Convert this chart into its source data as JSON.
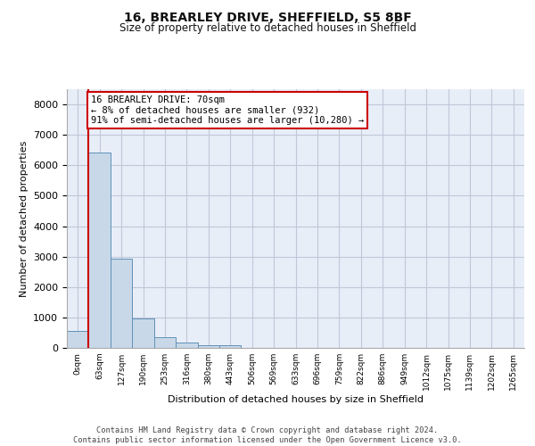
{
  "title_line1": "16, BREARLEY DRIVE, SHEFFIELD, S5 8BF",
  "title_line2": "Size of property relative to detached houses in Sheffield",
  "xlabel": "Distribution of detached houses by size in Sheffield",
  "ylabel": "Number of detached properties",
  "bin_labels": [
    "0sqm",
    "63sqm",
    "127sqm",
    "190sqm",
    "253sqm",
    "316sqm",
    "380sqm",
    "443sqm",
    "506sqm",
    "569sqm",
    "633sqm",
    "696sqm",
    "759sqm",
    "822sqm",
    "886sqm",
    "949sqm",
    "1012sqm",
    "1075sqm",
    "1139sqm",
    "1202sqm",
    "1265sqm"
  ],
  "bar_values": [
    560,
    6420,
    2920,
    980,
    360,
    170,
    100,
    75,
    0,
    0,
    0,
    0,
    0,
    0,
    0,
    0,
    0,
    0,
    0,
    0
  ],
  "bar_color": "#c8d8e8",
  "bar_edge_color": "#6090b8",
  "property_line_color": "#cc0000",
  "annotation_text": "16 BREARLEY DRIVE: 70sqm\n← 8% of detached houses are smaller (932)\n91% of semi-detached houses are larger (10,280) →",
  "annotation_box_color": "#ffffff",
  "annotation_box_edge": "#cc0000",
  "ylim": [
    0,
    8500
  ],
  "yticks": [
    0,
    1000,
    2000,
    3000,
    4000,
    5000,
    6000,
    7000,
    8000
  ],
  "grid_color": "#c0c8d8",
  "background_color": "#e8eef8",
  "footer_text": "Contains HM Land Registry data © Crown copyright and database right 2024.\nContains public sector information licensed under the Open Government Licence v3.0."
}
